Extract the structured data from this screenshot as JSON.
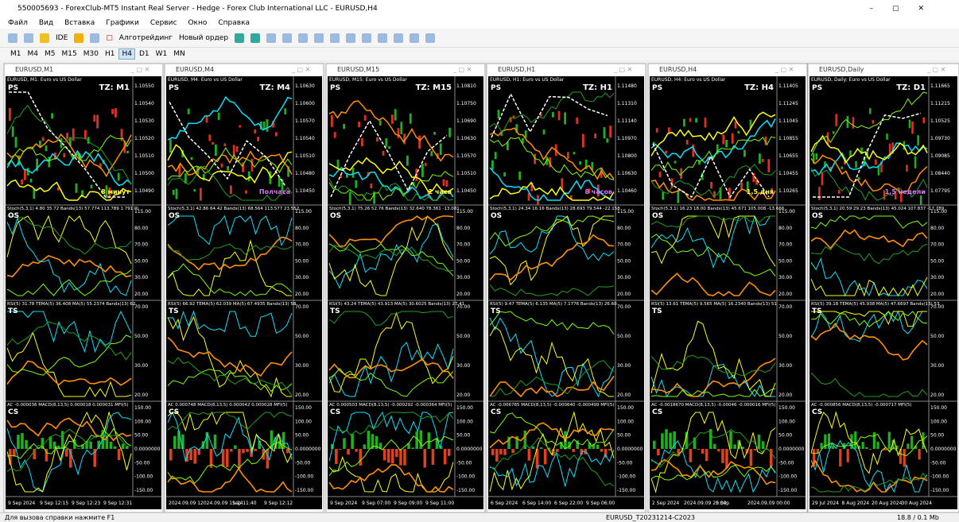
{
  "window": {
    "title": "550005693 - ForexClub-MT5 Instant Real Server - Hedge - Forex Club International LLC - EURUSD,H4"
  },
  "menu": [
    "Файл",
    "Вид",
    "Вставка",
    "Графики",
    "Сервис",
    "Окно",
    "Справка"
  ],
  "toolbar": {
    "ide": "IDE",
    "algo": "Алготрейдинг",
    "order": "Новый ордер"
  },
  "timeframes": [
    "M1",
    "M4",
    "M5",
    "M15",
    "M30",
    "H1",
    "H4",
    "D1",
    "W1",
    "MN"
  ],
  "pane_labels": [
    "PS",
    "OS",
    "TS",
    "CS"
  ],
  "os_scale": [
    "115.00",
    "80.00",
    "70.00",
    "50.00",
    "30.00",
    "20.00"
  ],
  "ts_scale": [
    "70.00",
    "50.00",
    "30.00",
    "20.00"
  ],
  "cs_scale": [
    "150.00",
    "100.00",
    "50.00",
    "0.0000000",
    "-50.00",
    "-100.00",
    "-150.00"
  ],
  "charts": [
    {
      "title": "EURUSD,M1",
      "info": "EURUSD, M1:  Euro vs US Dollar",
      "tz": "TZ: M1",
      "note": "8 минут",
      "prices": [
        "1.10550",
        "1.10540",
        "1.10530",
        "1.10520",
        "1.10510",
        "1.10500",
        "1.10490"
      ],
      "os": "Stoch(5,3,1) 4.80 35.72 Bands(13) 57.774 113.789 1.791 Ri",
      "ts": "RSI(5) 31.78 TEMA(5) 36.408 MA(5) 55.2374 Bands(13) 62",
      "cs": "AC -0.000036 MACD(8,13,5) 0.000018 0.000031 MFI(5)",
      "times": [
        "9 Sep 2024",
        "9 Sep 12:15",
        "9 Sep 12:23",
        "9 Sep 12:31"
      ]
    },
    {
      "title": "EURUSD,M4",
      "info": "EURUSD, M4:  Euro vs US Dollar",
      "tz": "TZ: M4",
      "note": "Полчаса",
      "prices": [
        "1.10630",
        "1.10600",
        "1.10570",
        "1.10540",
        "1.10510",
        "1.10480",
        "1.10450"
      ],
      "os": "Stoch(5,3,1) 42.86 64.42 Bands(13) 68.564 113.577 23.552",
      "ts": "RSI(5) 66.92 TEMA(5) 62.039 MA(5) 67.4935 Bands(13) 58",
      "cs": "AC 0.000748 MACD(8,13,5) 0.000042 0.000028 MFI(5)",
      "times": [
        "2024.09.09 1",
        "2024.09.09 11:24",
        "Sep 11:40",
        "9 Sep 12:12"
      ]
    },
    {
      "title": "EURUSD,M15",
      "info": "EURUSD, M15:  Euro vs US Dollar",
      "tz": "TZ: M15",
      "note": "2 часа",
      "prices": [
        "1.10810",
        "1.10750",
        "1.10690",
        "1.10630",
        "1.10570",
        "1.10510",
        "1.10450"
      ],
      "os": "Stoch(5,3,1) 75.26 52.76 Bands(13) 32.640 78.361 -13.081",
      "ts": "RSI(5) 43.24 TEMA(5) 43.913 MA(5) 30.6025 Bands(13) 27.41",
      "cs": "AC 0.000503 MACD(8,13,5) -0.000292 -0.000364 MFI(5)",
      "times": [
        "9 Sep 2024",
        "9 Sep 07:00",
        "9 Sep 09:00",
        "9 Sep 11:00"
      ]
    },
    {
      "title": "EURUSD,H1",
      "info": "EURUSD, H1:  Euro vs US Dollar",
      "tz": "TZ: H1",
      "note": "8 часов",
      "prices": [
        "1.11480",
        "1.11310",
        "1.11140",
        "1.10970",
        "1.10800",
        "1.10630",
        "1.10460"
      ],
      "os": "Stoch(5,3,1) 24.34 16.16 Bands(13) 28.693 79.544 -22.158",
      "ts": "RSI(5) 9.47 TEMA(5) 6.135 MA(5) 7.1776 Bands(13) 26.60",
      "cs": "AC -0.006785 MACD(8,13,5) -0.000640 -0.000499 MFI(5)",
      "times": [
        "6 Sep 2024",
        "6 Sep 14:00",
        "6 Sep 22:00",
        "9 Sep 06:00"
      ]
    },
    {
      "title": "EURUSD,H4",
      "info": "EURUSD, H4:  Euro vs US Dollar",
      "tz": "TZ: H4",
      "note": "1,5 дня",
      "prices": [
        "1.11405",
        "1.11245",
        "1.11045",
        "1.10855",
        "1.10655",
        "1.10455",
        "1.10265"
      ],
      "os": "Stoch(5,3,1) 16.23 18.00 Bands(13) 45.671 105.008 -13.666",
      "ts": "RSI(5) 13.61 TEMA(5) 9.565 MA(5) 16.2340 Bands(13) 51",
      "cs": "AC -0.0018670 MACD(8,13,5) -0.00046 -0.000016 MFI(5)",
      "times": [
        "2 Sep 2024",
        "2024.09.09 20:00",
        "5 Sep",
        "2024.09.09 00:00"
      ]
    },
    {
      "title": "EURUSD,Daily",
      "info": "EURUSD, Daily:  Euro vs US Dollar",
      "tz": "TZ: D1",
      "note": "1,5 недели",
      "prices": [
        "1.11665",
        "1.11215",
        "1.10525",
        "1.09730",
        "1.09085",
        "1.08440",
        "1.07795"
      ],
      "os": "Stoch(5,3,1) 20.59 29.23 Bands(13) 45.024 107.837 -17.789",
      "ts": "RSI(5) 39.18 TEMA(5) 45.938 MA(5) 47.6697 Bands(13) 53",
      "cs": "AC -0.000856 MACD(8,13,5) -0.000717 MFI(5)",
      "times": [
        "29 Jul 2024",
        "8 Aug 2024",
        "20 Aug 2024",
        "30 Aug 2024"
      ]
    }
  ],
  "status": {
    "help": "Для вызова справки нажмите F1",
    "profile": "EURUSD_T20231214-C2023",
    "traffic": "18.8 / 0.1 Mb"
  }
}
